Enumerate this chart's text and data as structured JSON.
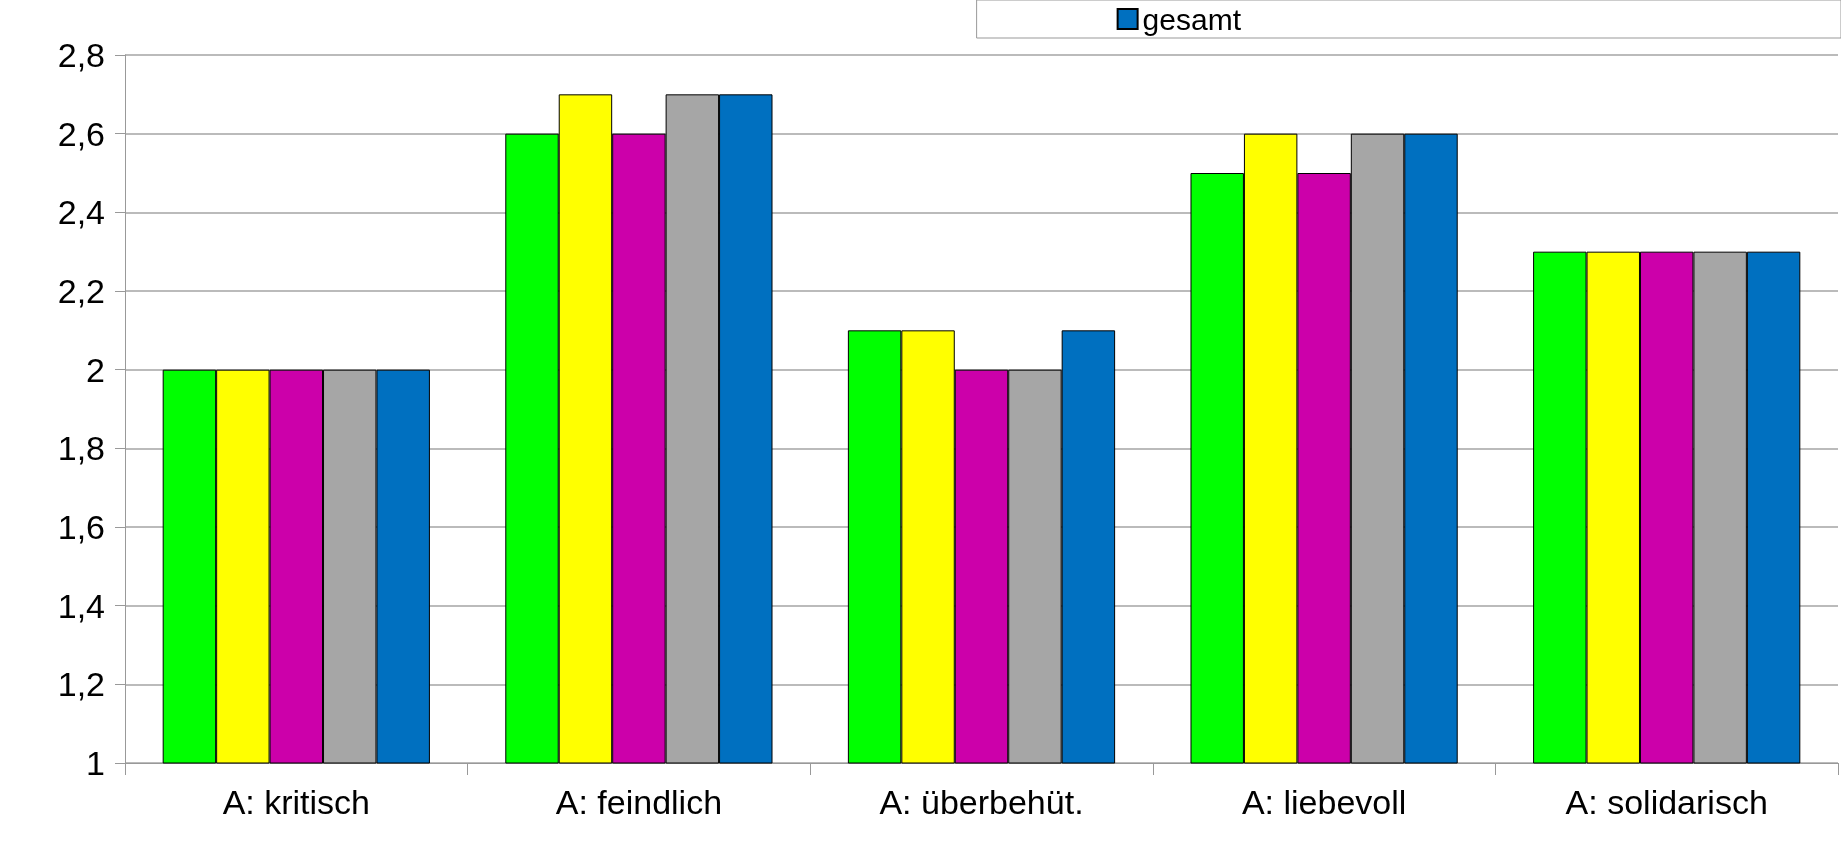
{
  "chart_data": {
    "type": "bar",
    "categories": [
      "A: kritisch",
      "A: feindlich",
      "A: überbehüt.",
      "A: liebevoll",
      "A: solidarisch"
    ],
    "series": [
      {
        "color": "#00ff00",
        "values": [
          2.0,
          2.6,
          2.1,
          2.5,
          2.3
        ]
      },
      {
        "color": "#ffff00",
        "values": [
          2.0,
          2.7,
          2.1,
          2.6,
          2.3
        ]
      },
      {
        "color": "#cc00aa",
        "values": [
          2.0,
          2.6,
          2.0,
          2.5,
          2.3
        ]
      },
      {
        "color": "#a6a6a6",
        "values": [
          2.0,
          2.7,
          2.0,
          2.6,
          2.3
        ]
      },
      {
        "name": "gesamt",
        "color": "#0070c0",
        "values": [
          2.0,
          2.7,
          2.1,
          2.6,
          2.3
        ]
      }
    ],
    "ylim": [
      1,
      2.8
    ],
    "yticks": [
      1,
      {
        "value": 1.2,
        "label": "1,2"
      },
      {
        "value": 1.4,
        "label": "1,4"
      },
      {
        "value": 1.6,
        "label": "1,6"
      },
      {
        "value": 1.8,
        "label": "1,8"
      },
      2,
      {
        "value": 2.2,
        "label": "2,2"
      },
      {
        "value": 2.4,
        "label": "2,4"
      },
      {
        "value": 2.6,
        "label": "2,6"
      },
      {
        "value": 2.8,
        "label": "2,8"
      }
    ],
    "grid": "y",
    "legend": "top right"
  }
}
